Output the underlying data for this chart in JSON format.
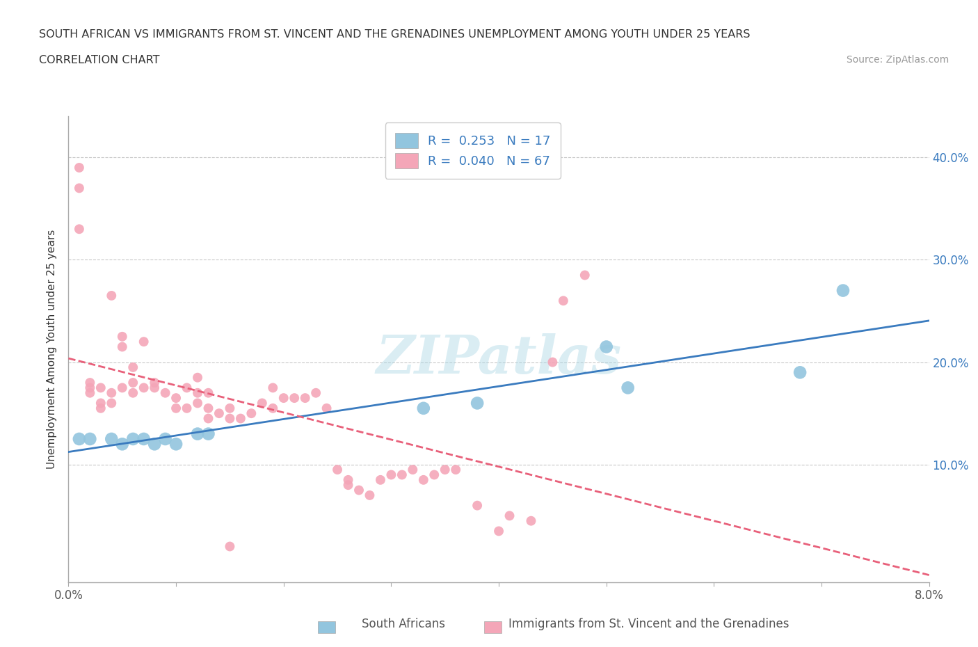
{
  "title_line1": "SOUTH AFRICAN VS IMMIGRANTS FROM ST. VINCENT AND THE GRENADINES UNEMPLOYMENT AMONG YOUTH UNDER 25 YEARS",
  "title_line2": "CORRELATION CHART",
  "source": "Source: ZipAtlas.com",
  "ylabel": "Unemployment Among Youth under 25 years",
  "xlim": [
    0,
    0.08
  ],
  "ylim": [
    -0.015,
    0.44
  ],
  "xticks": [
    0.0,
    0.01,
    0.02,
    0.03,
    0.04,
    0.05,
    0.06,
    0.07,
    0.08
  ],
  "xtick_labels_show": [
    "0.0%",
    "",
    "",
    "",
    "",
    "",
    "",
    "",
    "8.0%"
  ],
  "yticks": [
    0.0,
    0.1,
    0.2,
    0.3,
    0.4
  ],
  "ytick_labels": [
    "",
    "10.0%",
    "20.0%",
    "30.0%",
    "40.0%"
  ],
  "blue_color": "#92c5de",
  "pink_color": "#f4a6b8",
  "blue_line_color": "#3a7bbf",
  "pink_line_color": "#e8607a",
  "pink_line_dash": true,
  "watermark": "ZIPatlas",
  "legend_R_blue": "R =  0.253   N = 17",
  "legend_R_pink": "R =  0.040   N = 67",
  "blue_x": [
    0.001,
    0.002,
    0.004,
    0.005,
    0.006,
    0.007,
    0.008,
    0.009,
    0.01,
    0.012,
    0.013,
    0.033,
    0.038,
    0.05,
    0.052,
    0.068,
    0.072
  ],
  "blue_y": [
    0.125,
    0.125,
    0.125,
    0.12,
    0.125,
    0.125,
    0.12,
    0.125,
    0.12,
    0.13,
    0.13,
    0.155,
    0.16,
    0.215,
    0.175,
    0.19,
    0.27
  ],
  "pink_x": [
    0.001,
    0.001,
    0.001,
    0.002,
    0.002,
    0.002,
    0.003,
    0.003,
    0.003,
    0.004,
    0.004,
    0.004,
    0.005,
    0.005,
    0.005,
    0.006,
    0.006,
    0.006,
    0.007,
    0.007,
    0.008,
    0.008,
    0.009,
    0.01,
    0.01,
    0.011,
    0.011,
    0.012,
    0.012,
    0.012,
    0.013,
    0.013,
    0.013,
    0.014,
    0.015,
    0.015,
    0.016,
    0.017,
    0.018,
    0.019,
    0.019,
    0.02,
    0.021,
    0.022,
    0.023,
    0.024,
    0.025,
    0.026,
    0.026,
    0.027,
    0.028,
    0.029,
    0.03,
    0.031,
    0.032,
    0.033,
    0.034,
    0.035,
    0.036,
    0.038,
    0.04,
    0.041,
    0.043,
    0.045,
    0.046,
    0.048,
    0.015
  ],
  "pink_y": [
    0.37,
    0.39,
    0.33,
    0.17,
    0.175,
    0.18,
    0.155,
    0.16,
    0.175,
    0.16,
    0.17,
    0.265,
    0.175,
    0.215,
    0.225,
    0.17,
    0.18,
    0.195,
    0.175,
    0.22,
    0.175,
    0.18,
    0.17,
    0.155,
    0.165,
    0.155,
    0.175,
    0.16,
    0.17,
    0.185,
    0.145,
    0.155,
    0.17,
    0.15,
    0.145,
    0.155,
    0.145,
    0.15,
    0.16,
    0.155,
    0.175,
    0.165,
    0.165,
    0.165,
    0.17,
    0.155,
    0.095,
    0.08,
    0.085,
    0.075,
    0.07,
    0.085,
    0.09,
    0.09,
    0.095,
    0.085,
    0.09,
    0.095,
    0.095,
    0.06,
    0.035,
    0.05,
    0.045,
    0.2,
    0.26,
    0.285,
    0.02
  ],
  "grid_color": "#c8c8c8",
  "background_color": "#ffffff",
  "marker_size": 100
}
